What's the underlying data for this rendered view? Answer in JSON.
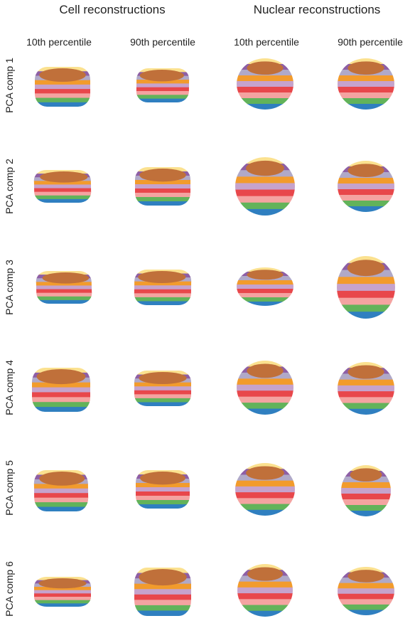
{
  "titles": {
    "cell": "Cell reconstructions",
    "nuclear": "Nuclear reconstructions"
  },
  "columns": [
    "10th percentile",
    "90th percentile",
    "10th percentile",
    "90th percentile"
  ],
  "rows": [
    "PCA comp 1",
    "PCA comp 2",
    "PCA comp 3",
    "PCA comp 4",
    "PCA comp 5",
    "PCA comp 6"
  ],
  "band_colors": [
    "#fbe18f",
    "#8e5fa6",
    "#b0a9c8",
    "#f29b2c",
    "#c6a3cc",
    "#e8474b",
    "#f4a3a1",
    "#62b35a",
    "#2f7fc0"
  ],
  "cap_color": "#c0703a"
}
